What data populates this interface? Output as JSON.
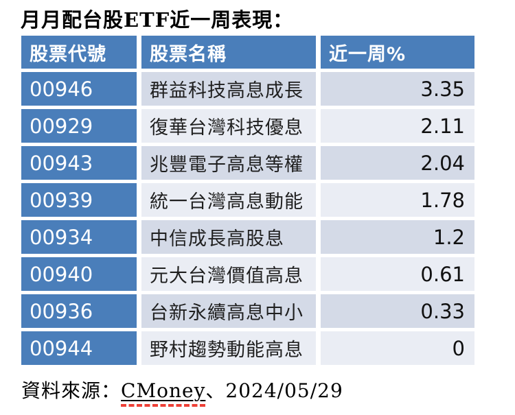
{
  "chart_data": {
    "type": "table",
    "title": "月月配台股ETF近一周表現：",
    "columns": [
      "股票代號",
      "股票名稱",
      "近一周%"
    ],
    "rows": [
      {
        "code": "00946",
        "name": "群益科技高息成長",
        "week_pct": 3.35
      },
      {
        "code": "00929",
        "name": "復華台灣科技優息",
        "week_pct": 2.11
      },
      {
        "code": "00943",
        "name": "兆豐電子高息等權",
        "week_pct": 2.04
      },
      {
        "code": "00939",
        "name": "統一台灣高息動能",
        "week_pct": 1.78
      },
      {
        "code": "00934",
        "name": "中信成長高股息",
        "week_pct": 1.2
      },
      {
        "code": "00940",
        "name": "元大台灣價值高息",
        "week_pct": 0.61
      },
      {
        "code": "00936",
        "name": "台新永續高息中小",
        "week_pct": 0.33
      },
      {
        "code": "00944",
        "name": "野村趨勢動能高息",
        "week_pct": 0
      }
    ],
    "layout": {
      "banded_rows": true,
      "value_align": "right"
    }
  },
  "footer": {
    "label": "資料來源：",
    "link": "CMoney",
    "suffix": "、2024/05/29"
  },
  "colors": {
    "header_bg": "#4A7EBA",
    "row_odd_bg": "#D4DAE7",
    "row_even_bg": "#EAEDF4",
    "gap": "#FFFFFF",
    "header_text": "#FFFFFF",
    "body_text": "#1F1F1F",
    "red_dash": "#EE4036"
  }
}
